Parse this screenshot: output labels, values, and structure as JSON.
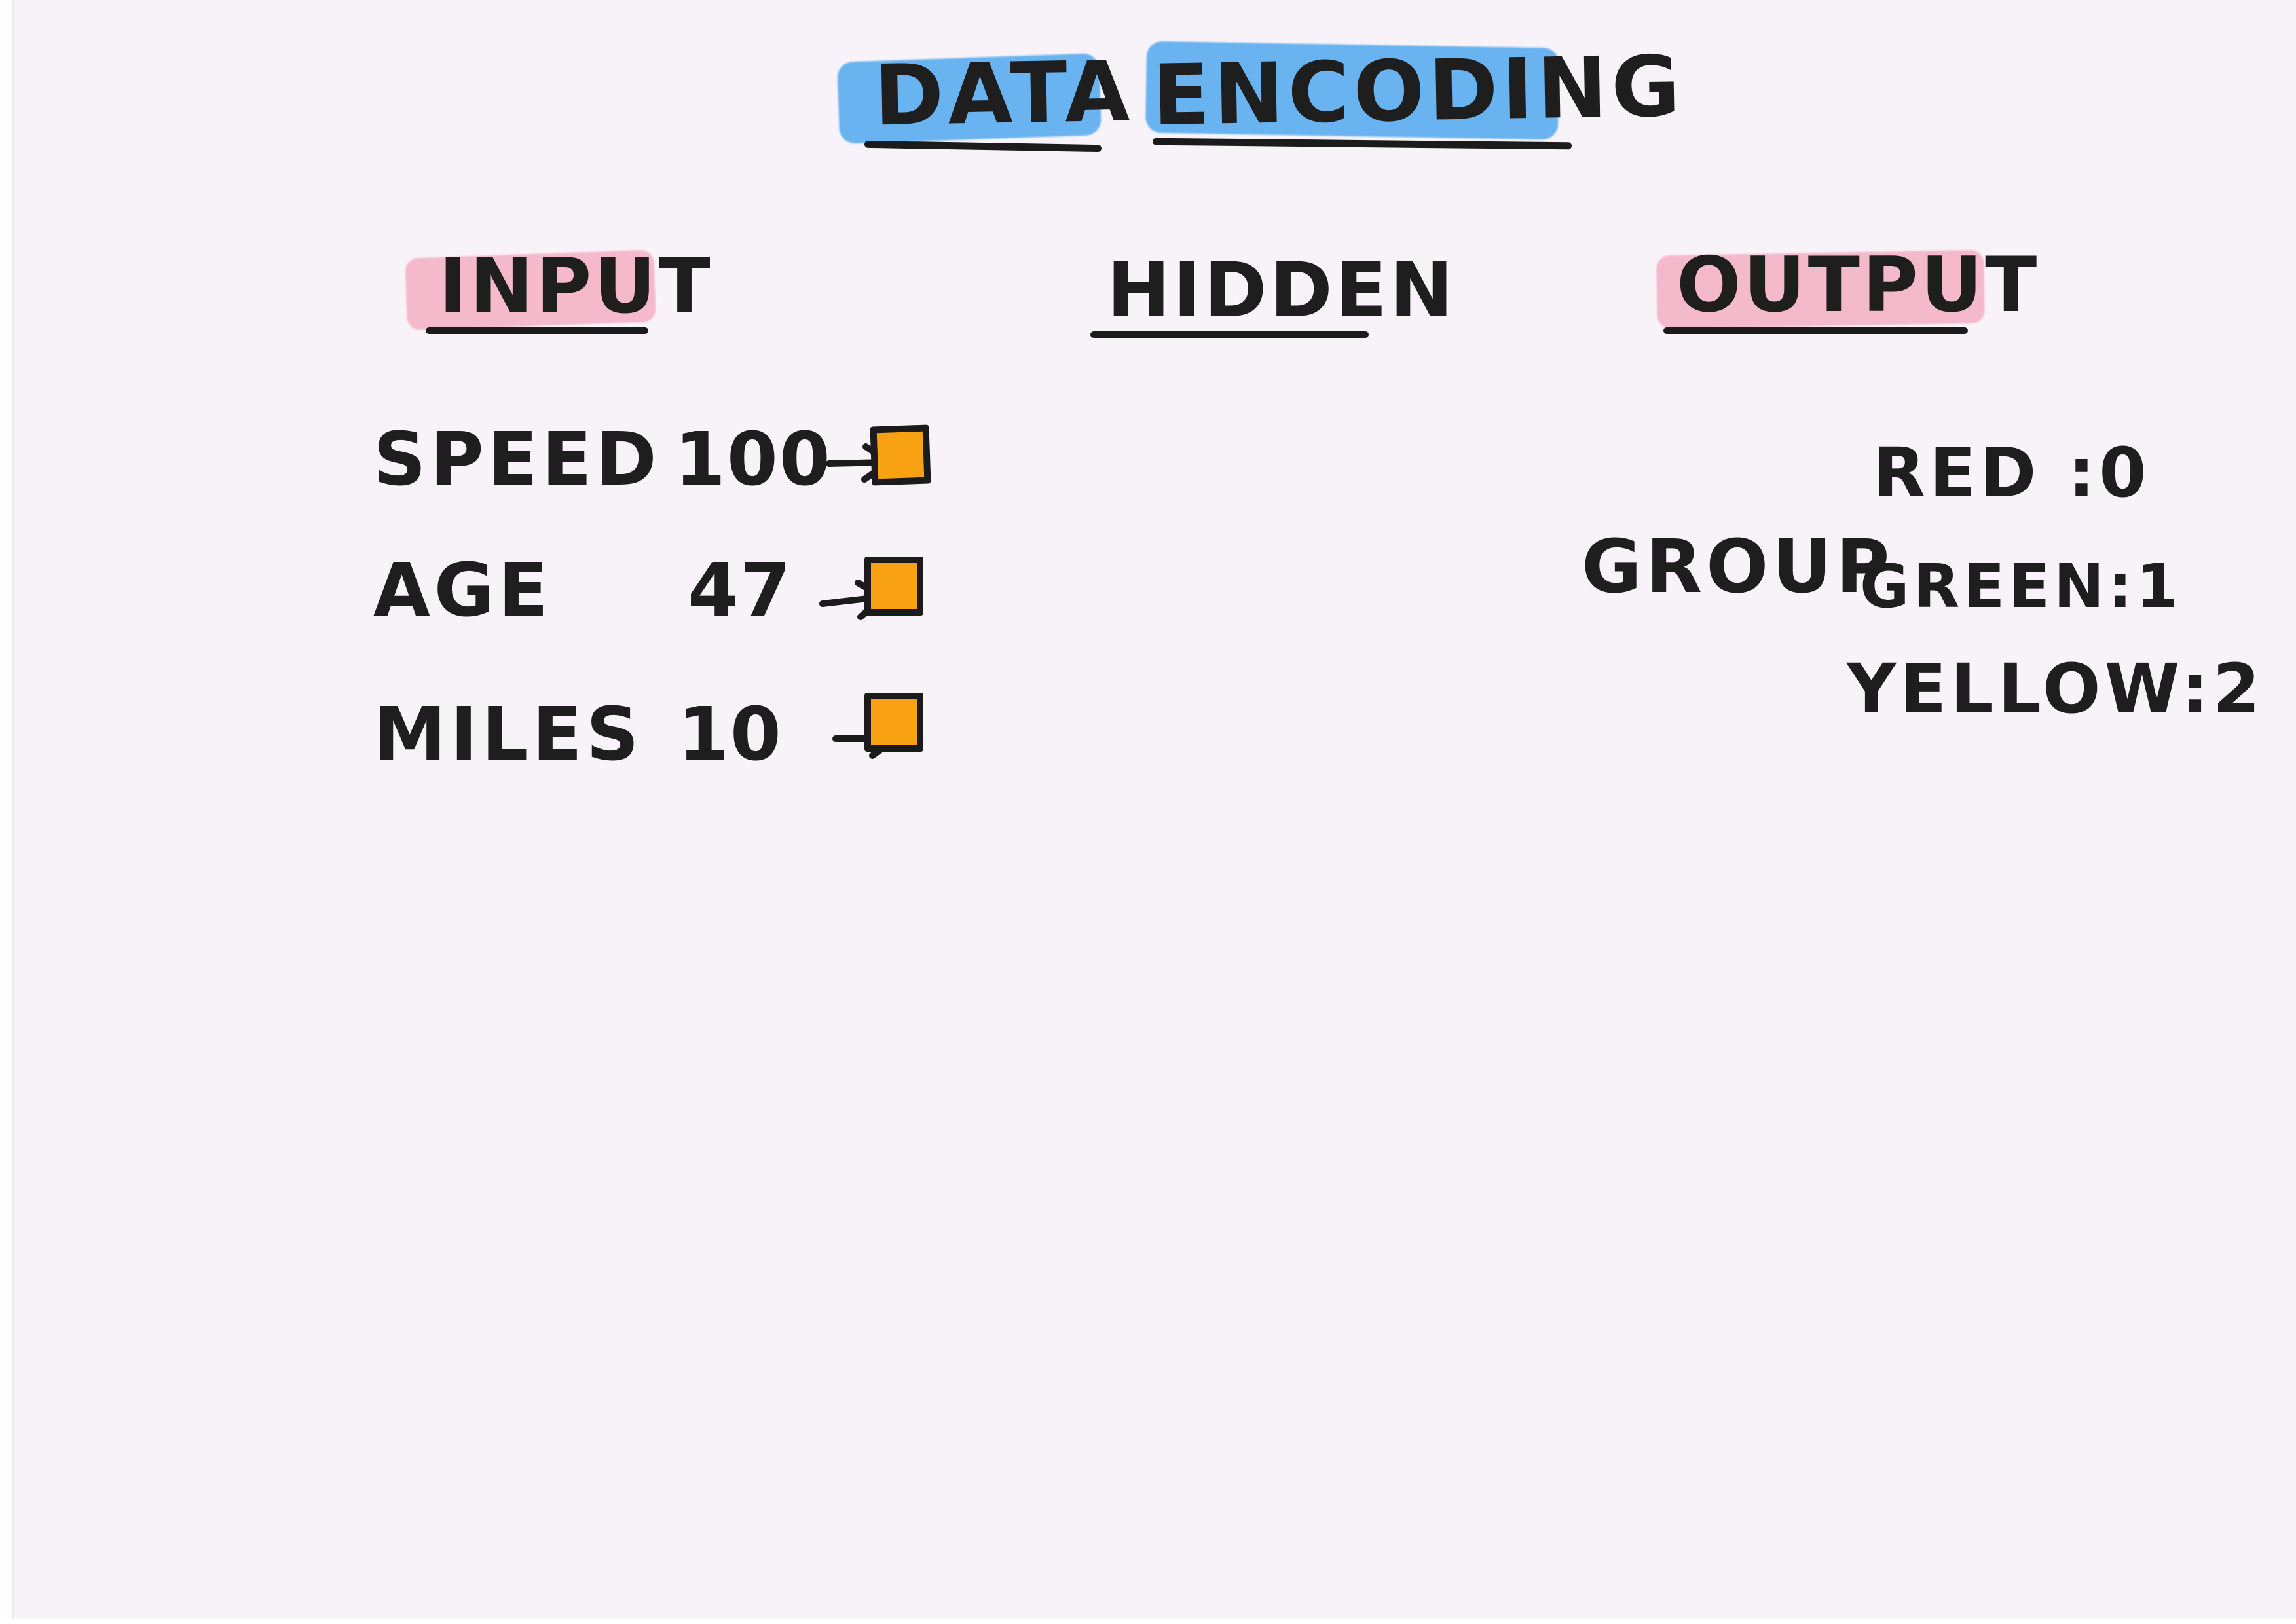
{
  "title": {
    "word_1": "DATA",
    "word_2": "ENCODING"
  },
  "columns": {
    "input": "INPUT",
    "hidden": "HIDDEN",
    "output": "OUTPUT"
  },
  "inputs": [
    {
      "name": "SPEED",
      "value": "100"
    },
    {
      "name": "AGE",
      "value": "47"
    },
    {
      "name": "MILES",
      "value": "10"
    }
  ],
  "output": {
    "group_label": "GROUP",
    "items": [
      {
        "label": "RED :0"
      },
      {
        "label": "GREEN:1"
      },
      {
        "label": "YELLOW:2"
      }
    ]
  },
  "colors": {
    "title_highlight": "#5aaef0",
    "header_highlight": "#f4b3c7",
    "node_fill": "#f7a113",
    "ink": "#1b1b1b",
    "paper": "#f8f3f8"
  },
  "icons": {
    "arrow": "arrow-right-icon",
    "node": "input-node-square"
  }
}
